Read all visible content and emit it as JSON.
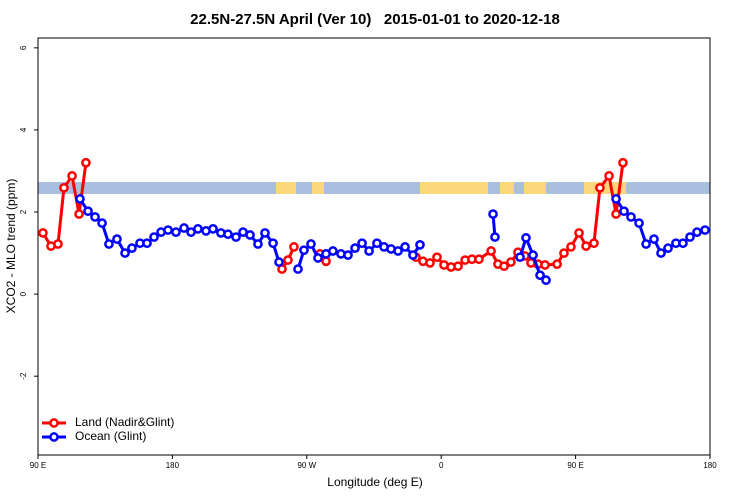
{
  "chart_data": {
    "type": "line",
    "title": "22.5N-27.5N April (Ver 10)   2015-01-01 to 2020-12-18",
    "xlabel": "Longitude (deg E)",
    "ylabel": "XCO2 - MLO trend (ppm)",
    "xlim": [
      90,
      540
    ],
    "ylim": [
      -3.92,
      6.24
    ],
    "xticks": [
      {
        "value": 90,
        "label": "90 E"
      },
      {
        "value": 180,
        "label": "180"
      },
      {
        "value": 270,
        "label": "90 W"
      },
      {
        "value": 360,
        "label": "0"
      },
      {
        "value": 450,
        "label": "90 E"
      },
      {
        "value": 540,
        "label": "180"
      }
    ],
    "yticks": [
      -2,
      0,
      2,
      4,
      6
    ],
    "legend": "bottom-left",
    "series": [
      {
        "name": "Land (Nadir&Glint)",
        "color": "#ff0000",
        "x": [
          93.3,
          98.7,
          103.4,
          107.4,
          112.8,
          117.5,
          122.1,
          null,
          253.4,
          257.4,
          261.4,
          null,
          278.8,
          282.9,
          null,
          343.1,
          347.8,
          352.5,
          357.2,
          361.9,
          366.6,
          371.3,
          376.0,
          380.6,
          385.3,
          393.4,
          398.0,
          402.1,
          406.7,
          411.4,
          416.1,
          420.1,
          424.8,
          429.5,
          437.6,
          442.2,
          446.9,
          452.3,
          457.0,
          462.3,
          466.3,
          472.4,
          477.1,
          481.7
        ],
        "values": [
          1.49,
          1.17,
          1.22,
          2.59,
          2.88,
          1.95,
          3.2,
          null,
          0.61,
          0.83,
          1.15,
          null,
          0.98,
          0.8,
          null,
          0.9,
          0.8,
          0.76,
          0.9,
          0.71,
          0.66,
          0.68,
          0.83,
          0.85,
          0.85,
          1.05,
          0.73,
          0.68,
          0.78,
          1.02,
          0.93,
          0.76,
          0.73,
          0.71,
          0.73,
          1.0,
          1.15,
          1.49,
          1.17,
          1.24,
          2.59,
          2.88,
          1.95,
          3.2
        ]
      },
      {
        "name": "Ocean (Glint)",
        "color": "#0000ff",
        "x": [
          118.1,
          123.5,
          128.2,
          132.9,
          137.5,
          142.9,
          148.3,
          152.9,
          158.3,
          163.0,
          167.7,
          172.4,
          177.1,
          182.4,
          187.8,
          192.5,
          197.1,
          202.5,
          207.2,
          212.5,
          217.2,
          222.6,
          227.3,
          232.0,
          237.3,
          242.0,
          247.4,
          251.4,
          null,
          264.1,
          268.1,
          272.8,
          277.5,
          282.9,
          287.5,
          292.9,
          297.6,
          302.3,
          307.0,
          311.7,
          317.0,
          321.7,
          326.4,
          331.1,
          335.8,
          341.1,
          345.8,
          null,
          394.7,
          396.0,
          null,
          412.8,
          416.8,
          421.5,
          426.2,
          430.2,
          null,
          477.1,
          482.4,
          487.1,
          492.5,
          497.2,
          502.5,
          507.2,
          511.9,
          517.2,
          521.9,
          526.6,
          531.3,
          536.7
        ],
        "values": [
          2.32,
          2.02,
          1.88,
          1.73,
          1.22,
          1.34,
          1.0,
          1.12,
          1.24,
          1.24,
          1.39,
          1.51,
          1.56,
          1.51,
          1.61,
          1.51,
          1.59,
          1.54,
          1.59,
          1.49,
          1.46,
          1.39,
          1.51,
          1.44,
          1.22,
          1.49,
          1.24,
          0.78,
          null,
          0.61,
          1.07,
          1.22,
          0.88,
          0.98,
          1.05,
          0.98,
          0.95,
          1.12,
          1.24,
          1.05,
          1.24,
          1.15,
          1.1,
          1.05,
          1.15,
          0.95,
          1.2,
          null,
          1.95,
          1.39,
          null,
          0.9,
          1.37,
          0.95,
          0.46,
          0.34,
          null,
          2.32,
          2.02,
          1.88,
          1.73,
          1.22,
          1.34,
          1.0,
          1.12,
          1.24,
          1.24,
          1.39,
          1.51,
          1.56
        ]
      }
    ]
  }
}
